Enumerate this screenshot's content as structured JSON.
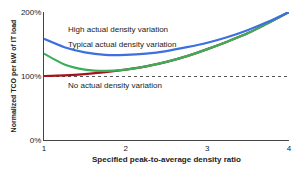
{
  "chart_data": {
    "type": "line",
    "x_label": "Specified peak-to-average density ratio",
    "y_label": "Normalized TCO per kW of IT load",
    "x": [
      1,
      1.25,
      1.5,
      1.75,
      2,
      2.25,
      2.5,
      2.75,
      3,
      3.25,
      3.5,
      3.75,
      4
    ],
    "series": [
      {
        "name": "No actual density variation",
        "color": "#a0141e",
        "values": [
          100,
          101,
          103,
          106,
          110,
          115,
          122,
          131,
          142,
          154,
          167,
          183,
          200
        ]
      },
      {
        "name": "Typical actual density variation",
        "color": "#3cae58",
        "values": [
          135,
          118,
          110,
          108,
          110,
          115,
          122,
          131,
          142,
          154,
          167,
          183,
          200
        ]
      },
      {
        "name": "High actual density variation",
        "color": "#3c6fe0",
        "values": [
          158,
          145,
          137,
          133,
          133,
          135,
          139,
          145,
          152,
          161,
          172,
          185,
          200
        ]
      }
    ],
    "xlim": [
      1,
      4
    ],
    "xticks": [
      1,
      2,
      3,
      4
    ],
    "ylim": [
      0,
      200
    ],
    "yticks": [
      {
        "value": 0,
        "label": "0%"
      },
      {
        "value": 100,
        "label": "100%"
      },
      {
        "value": 200,
        "label": "200%"
      }
    ],
    "grid": true
  }
}
